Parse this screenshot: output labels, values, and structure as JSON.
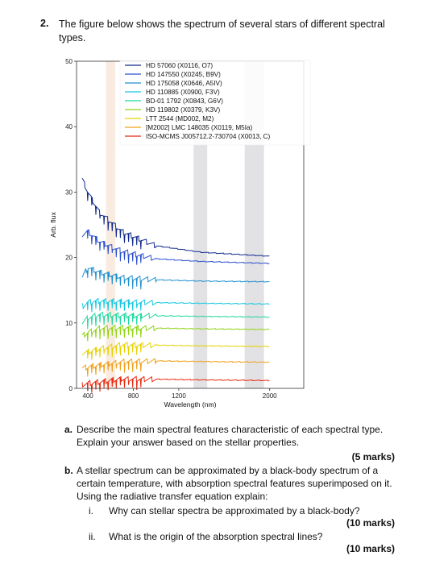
{
  "question": {
    "number": "2.",
    "text": "The figure below shows the spectrum of several stars of different spectral types."
  },
  "chart_data": {
    "type": "line",
    "title": "",
    "xlabel": "Wavelength (nm)",
    "ylabel": "Arb. flux",
    "xlim": [
      300,
      2300
    ],
    "ylim": [
      0,
      50
    ],
    "x_ticks": [
      {
        "value": 400,
        "label": "400"
      },
      {
        "value": 800,
        "label": "800"
      },
      {
        "value": 1200,
        "label": "1200"
      },
      {
        "value": 2000,
        "label": "2000"
      }
    ],
    "y_ticks": [
      0,
      10,
      20,
      30,
      40,
      50
    ],
    "legend_position": "top-right",
    "shaded_bands": [
      [
        560,
        640
      ],
      [
        1330,
        1450
      ],
      [
        1780,
        1950
      ]
    ],
    "series": [
      {
        "name": "HD 57060 (X0116, O7)",
        "color": "#102a8c",
        "x": [
          350,
          400,
          500,
          700,
          1000,
          1400,
          2000
        ],
        "y": [
          32,
          30,
          27,
          24,
          21.8,
          20.8,
          20.2
        ]
      },
      {
        "name": "HD 147550 (X0245, B9V)",
        "color": "#2b4fd0",
        "x": [
          350,
          400,
          500,
          700,
          1000,
          1400,
          2000
        ],
        "y": [
          23.5,
          24,
          22.5,
          21,
          19.8,
          19.4,
          19.1
        ]
      },
      {
        "name": "HD 175058 (X0646, A5IV)",
        "color": "#1e8fd0",
        "x": [
          350,
          400,
          500,
          700,
          1000,
          1400,
          2000
        ],
        "y": [
          17,
          18.5,
          17.8,
          17,
          16.6,
          16.4,
          16.3
        ]
      },
      {
        "name": "HD 110885 (X0900, F3V)",
        "color": "#14c8e0",
        "x": [
          350,
          400,
          500,
          700,
          1000,
          1400,
          2000
        ],
        "y": [
          12.5,
          13.2,
          13.4,
          13.3,
          13.1,
          13,
          12.9
        ]
      },
      {
        "name": "BD-01 1792 (X0843, G6V)",
        "color": "#20d8a0",
        "x": [
          350,
          400,
          500,
          700,
          1000,
          1400,
          2000
        ],
        "y": [
          10,
          10.8,
          11.3,
          11.2,
          11.1,
          11,
          10.9
        ]
      },
      {
        "name": "HD 119802 (X0379, K3V)",
        "color": "#8fd414",
        "x": [
          350,
          400,
          500,
          700,
          1000,
          1400,
          2000
        ],
        "y": [
          8,
          8.6,
          9.2,
          9.3,
          9.2,
          9.1,
          9
        ]
      },
      {
        "name": "LTT 2544 (MD002, M2)",
        "color": "#e6d200",
        "x": [
          350,
          400,
          500,
          700,
          1000,
          1400,
          2000
        ],
        "y": [
          5.4,
          5.6,
          6.1,
          6.7,
          6.6,
          6.5,
          6.4
        ]
      },
      {
        "name": "[M2002] LMC 148035 (X0119, M5Ia)",
        "color": "#f0a018",
        "x": [
          350,
          400,
          500,
          700,
          1000,
          1400,
          2000
        ],
        "y": [
          3.1,
          3.3,
          3.6,
          4.1,
          4.2,
          4.1,
          4
        ]
      },
      {
        "name": "ISO-MCMS J005712.2-730704 (X0013, C)",
        "color": "#e82810",
        "x": [
          350,
          400,
          500,
          700,
          1000,
          1400,
          2000
        ],
        "y": [
          0.6,
          0.8,
          1,
          1.5,
          1.4,
          1.3,
          1.2
        ]
      }
    ]
  },
  "parts": {
    "a": {
      "label": "a.",
      "text": "Describe the main spectral features characteristic of each spectral type. Explain your answer based on the stellar properties.",
      "marks": "(5 marks)"
    },
    "b": {
      "label": "b.",
      "text": "A stellar spectrum can be approximated by a black-body spectrum of a certain temperature, with absorption spectral features superimposed on it. Using the radiative transfer equation explain:",
      "i": {
        "label": "i.",
        "text": "Why can stellar spectra be approximated by a black-body?",
        "marks": "(10 marks)"
      },
      "ii": {
        "label": "ii.",
        "text": "What is the origin of the absorption spectral lines?",
        "marks": "(10 marks)"
      }
    }
  }
}
